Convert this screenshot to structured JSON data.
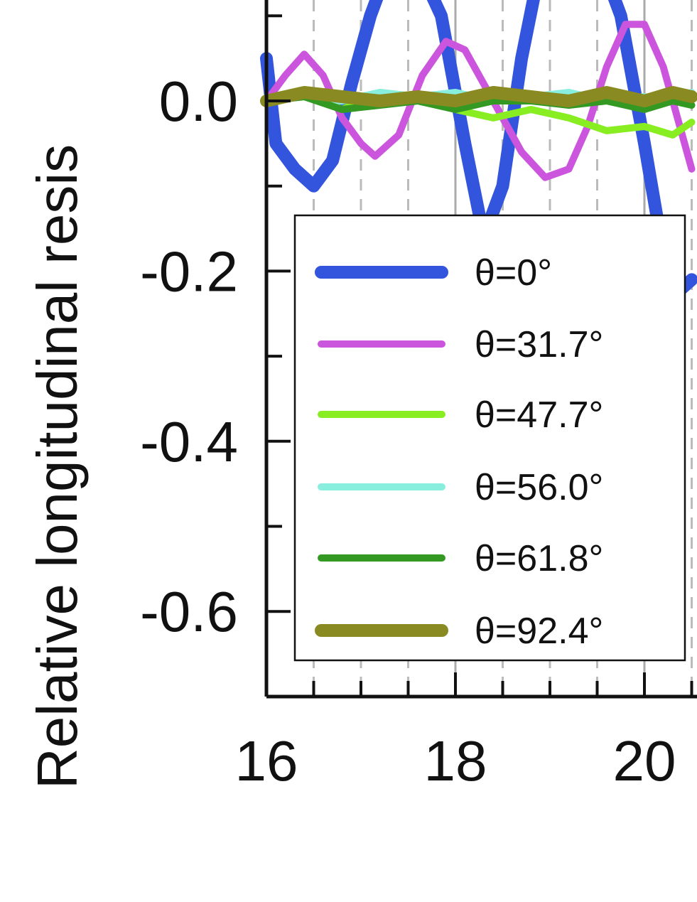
{
  "chart_data": {
    "type": "line",
    "xlabel": "",
    "ylabel": "Relative longitudinal resis",
    "xlim": [
      16,
      20.5
    ],
    "ylim": [
      -0.7,
      0.17
    ],
    "x_ticks": [
      16,
      18,
      20
    ],
    "x_tick_labels": [
      "16",
      "18",
      "20"
    ],
    "y_ticks": [
      0.0,
      -0.2,
      -0.4,
      -0.6
    ],
    "y_tick_labels": [
      "0.0",
      "-0.2",
      "-0.4",
      "-0.6"
    ],
    "grid": "vertical dashed",
    "legend_position": "bottom-left",
    "series": [
      {
        "name": "θ=0°",
        "color": "#3355dd",
        "x": [
          16.0,
          16.1,
          16.3,
          16.5,
          16.7,
          16.9,
          17.1,
          17.3,
          17.6,
          17.85,
          18.1,
          18.3,
          18.5,
          18.7,
          18.9,
          19.1,
          19.3,
          19.55,
          19.75,
          20.0,
          20.2,
          20.4,
          20.5
        ],
        "y": [
          0.05,
          -0.05,
          -0.08,
          -0.1,
          -0.07,
          0.02,
          0.1,
          0.16,
          0.16,
          0.1,
          -0.05,
          -0.16,
          -0.1,
          0.05,
          0.16,
          0.16,
          0.16,
          0.16,
          0.1,
          -0.05,
          -0.18,
          -0.22,
          -0.21
        ]
      },
      {
        "name": "θ=31.7°",
        "color": "#cc55dd",
        "x": [
          16.0,
          16.2,
          16.4,
          16.6,
          16.8,
          17.0,
          17.15,
          17.4,
          17.65,
          17.9,
          18.1,
          18.3,
          18.5,
          18.7,
          18.95,
          19.2,
          19.4,
          19.6,
          19.8,
          20.0,
          20.2,
          20.4,
          20.5
        ],
        "y": [
          0.0,
          0.03,
          0.055,
          0.03,
          -0.02,
          -0.05,
          -0.065,
          -0.04,
          0.03,
          0.07,
          0.06,
          0.02,
          -0.02,
          -0.06,
          -0.09,
          -0.08,
          -0.03,
          0.04,
          0.09,
          0.09,
          0.04,
          -0.04,
          -0.08
        ]
      },
      {
        "name": "θ=47.7°",
        "color": "#88ee22",
        "x": [
          16.0,
          16.4,
          16.8,
          17.2,
          17.6,
          18.0,
          18.4,
          18.8,
          19.2,
          19.6,
          20.0,
          20.3,
          20.5
        ],
        "y": [
          0.0,
          0.01,
          -0.01,
          0.01,
          0.005,
          -0.01,
          -0.02,
          -0.01,
          -0.02,
          -0.035,
          -0.03,
          -0.04,
          -0.025
        ]
      },
      {
        "name": "θ=56.0°",
        "color": "#88eedd",
        "x": [
          16.0,
          16.4,
          16.8,
          17.2,
          17.6,
          18.0,
          18.4,
          18.8,
          19.2,
          19.6,
          20.0,
          20.3,
          20.5
        ],
        "y": [
          0.0,
          0.005,
          0.0,
          0.01,
          0.005,
          0.01,
          0.0,
          0.005,
          0.01,
          0.0,
          0.005,
          0.0,
          0.01
        ]
      },
      {
        "name": "θ=61.8°",
        "color": "#339922",
        "x": [
          16.0,
          16.4,
          16.8,
          17.2,
          17.6,
          18.0,
          18.4,
          18.8,
          19.2,
          19.6,
          20.0,
          20.3,
          20.5
        ],
        "y": [
          0.0,
          0.005,
          -0.01,
          -0.005,
          0.0,
          -0.01,
          0.0,
          0.0,
          -0.005,
          0.0,
          -0.01,
          0.0,
          -0.005
        ]
      },
      {
        "name": "θ=92.4°",
        "color": "#8a8a22",
        "x": [
          16.0,
          16.4,
          16.8,
          17.2,
          17.6,
          18.0,
          18.4,
          18.8,
          19.2,
          19.6,
          20.0,
          20.3,
          20.5
        ],
        "y": [
          0.0,
          0.01,
          0.005,
          0.0,
          0.005,
          0.0,
          0.01,
          0.005,
          0.0,
          0.01,
          0.0,
          0.01,
          0.005
        ]
      }
    ]
  }
}
